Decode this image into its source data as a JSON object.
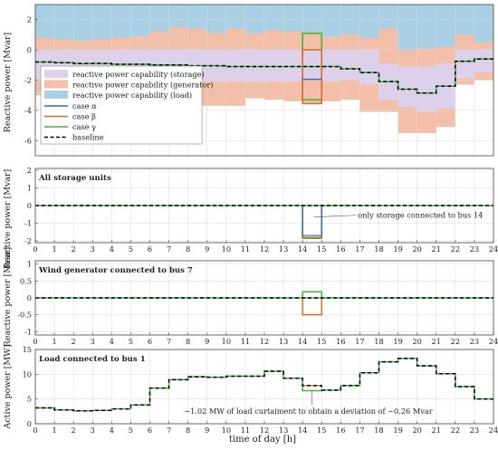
{
  "chart_data": [
    {
      "type": "area",
      "ylabel": "Reactive power [Mvar]",
      "xlim": [
        0,
        24
      ],
      "ylim": [
        -7,
        3
      ],
      "yticks": [
        -6,
        -4,
        -2,
        0,
        2
      ],
      "legend": {
        "placement": "center-left",
        "entries": [
          "reactive power capability (storage)",
          "reactive power capability (generator)",
          "reactive power capability (load)",
          "case α",
          "case β",
          "case γ",
          "baseline"
        ]
      },
      "hours": [
        0,
        1,
        2,
        3,
        4,
        5,
        6,
        7,
        8,
        9,
        10,
        11,
        12,
        13,
        14,
        15,
        16,
        17,
        18,
        19,
        20,
        21,
        22,
        23
      ],
      "baseline": [
        -0.8,
        -0.85,
        -0.9,
        -0.9,
        -0.95,
        -0.95,
        -1.0,
        -1.0,
        -1.05,
        -1.05,
        -1.1,
        -1.1,
        -1.1,
        -1.1,
        -1.1,
        -1.1,
        -1.25,
        -1.5,
        -2.1,
        -2.6,
        -2.85,
        -2.4,
        -0.75,
        -0.6
      ],
      "load_capability_bottom": [
        -0.6,
        -0.6,
        -0.6,
        -0.6,
        -0.6,
        -0.6,
        -0.6,
        -0.6,
        -0.6,
        -0.6,
        -0.6,
        -0.6,
        -0.6,
        -0.6,
        -0.6,
        -0.6,
        -0.6,
        -0.6,
        -0.6,
        -0.6,
        -0.6,
        -0.6,
        -0.6,
        -0.6
      ],
      "generator_capability": [
        [
          0.8,
          -3.0
        ],
        [
          0.7,
          -3.1
        ],
        [
          0.6,
          -3.1
        ],
        [
          0.7,
          -3.1
        ],
        [
          0.8,
          -3.0
        ],
        [
          0.9,
          -3.0
        ],
        [
          1.2,
          -3.0
        ],
        [
          1.5,
          -3.1
        ],
        [
          1.4,
          -3.7
        ],
        [
          1.1,
          -3.7
        ],
        [
          1.4,
          -3.7
        ],
        [
          1.1,
          -3.2
        ],
        [
          1.3,
          -3.3
        ],
        [
          1.2,
          -3.4
        ],
        [
          1.2,
          -3.5
        ],
        [
          0.9,
          -3.4
        ],
        [
          1.0,
          -3.3
        ],
        [
          0.8,
          -4.1
        ],
        [
          1.4,
          -4.1
        ],
        [
          0.0,
          -5.5
        ],
        [
          0.1,
          -5.5
        ],
        [
          0.2,
          -5.1
        ],
        [
          1.0,
          -2.3
        ],
        [
          0.5,
          -2.0
        ]
      ],
      "storage_capability": [
        [
          0.0,
          -2.0
        ],
        [
          0.0,
          -2.0
        ],
        [
          0.0,
          -2.0
        ],
        [
          0.0,
          -2.0
        ],
        [
          0.0,
          -2.0
        ],
        [
          0.0,
          -2.0
        ],
        [
          0.0,
          -2.1
        ],
        [
          0.0,
          -2.1
        ],
        [
          0.0,
          -2.1
        ],
        [
          0.0,
          -2.1
        ],
        [
          0.0,
          -2.1
        ],
        [
          0.0,
          -2.1
        ],
        [
          0.0,
          -2.1
        ],
        [
          0.0,
          -2.1
        ],
        [
          0.0,
          -2.0
        ],
        [
          0.0,
          -2.1
        ],
        [
          0.0,
          -2.0
        ],
        [
          0.0,
          -2.3
        ],
        [
          -0.9,
          -3.3
        ],
        [
          -1.1,
          -3.8
        ],
        [
          -1.1,
          -4.1
        ],
        [
          -0.9,
          -3.9
        ],
        [
          0.0,
          -1.9
        ],
        [
          0.0,
          -1.5
        ]
      ],
      "case_alpha": {
        "x": [
          14,
          15
        ],
        "value": -1.95
      },
      "case_beta": {
        "x": [
          14,
          15
        ],
        "bounds": [
          0.0,
          -3.55
        ]
      },
      "case_gamma": {
        "x": [
          14,
          15
        ],
        "bounds": [
          1.1,
          -3.3
        ]
      }
    },
    {
      "type": "line",
      "title": "All storage units",
      "ylabel": "Reactive power [Mvar]",
      "xlim": [
        0,
        24
      ],
      "ylim": [
        -2.1,
        2.1
      ],
      "yticks": [
        -2,
        -1,
        0,
        1,
        2
      ],
      "baseline_value": 0,
      "case_alpha": {
        "x": [
          14,
          15
        ],
        "value": -1.7
      },
      "case_beta": {
        "x": [
          14,
          15
        ],
        "value": -1.8
      },
      "case_gamma": {
        "x": [
          14,
          15
        ],
        "value": -1.85
      },
      "annotation": "only storage connected to bus 14"
    },
    {
      "type": "line",
      "title": "Wind generator connected to bus 7",
      "ylabel": "Reactive power [Mvar]",
      "xlim": [
        0,
        24
      ],
      "ylim": [
        -1.1,
        1.1
      ],
      "yticks": [
        -1,
        -0.5,
        0,
        0.5,
        1
      ],
      "baseline_value": 0,
      "case_beta": {
        "x": [
          14,
          15
        ],
        "value": -0.5
      },
      "case_gamma": {
        "x": [
          14,
          15
        ],
        "value": 0.18
      }
    },
    {
      "type": "line",
      "title": "Load connected to bus 1",
      "ylabel": "Active power [MW]",
      "xlabel": "time of day [h]",
      "xlim": [
        0,
        24
      ],
      "ylim": [
        0,
        15
      ],
      "yticks": [
        0,
        5,
        10,
        15
      ],
      "xticks": [
        0,
        1,
        2,
        3,
        4,
        5,
        6,
        7,
        8,
        9,
        10,
        11,
        12,
        13,
        14,
        15,
        16,
        17,
        18,
        19,
        20,
        21,
        22,
        23,
        24
      ],
      "hours": [
        0,
        1,
        2,
        3,
        4,
        5,
        6,
        7,
        8,
        9,
        10,
        11,
        12,
        13,
        14,
        15,
        16,
        17,
        18,
        19,
        20,
        21,
        22,
        23
      ],
      "baseline": [
        3.2,
        2.8,
        2.6,
        2.7,
        3.0,
        3.8,
        7.2,
        8.9,
        9.5,
        9.4,
        9.6,
        9.6,
        10.6,
        9.2,
        7.7,
        6.8,
        7.7,
        10.3,
        12.5,
        13.2,
        11.7,
        10.1,
        7.5,
        5.0
      ],
      "case_gamma_hour14": 6.68,
      "annotation": "~1.02 MW of load curtaiment to obtain a deviation of ~0.26 Mvar"
    }
  ],
  "colors": {
    "storage": "#ddd0ea",
    "generator": "#f4bfa8",
    "load": "#a9cfe5",
    "alpha": "#2b6fbf",
    "beta": "#e06a2b",
    "gamma": "#3cb83c",
    "baseline": "#000000"
  }
}
